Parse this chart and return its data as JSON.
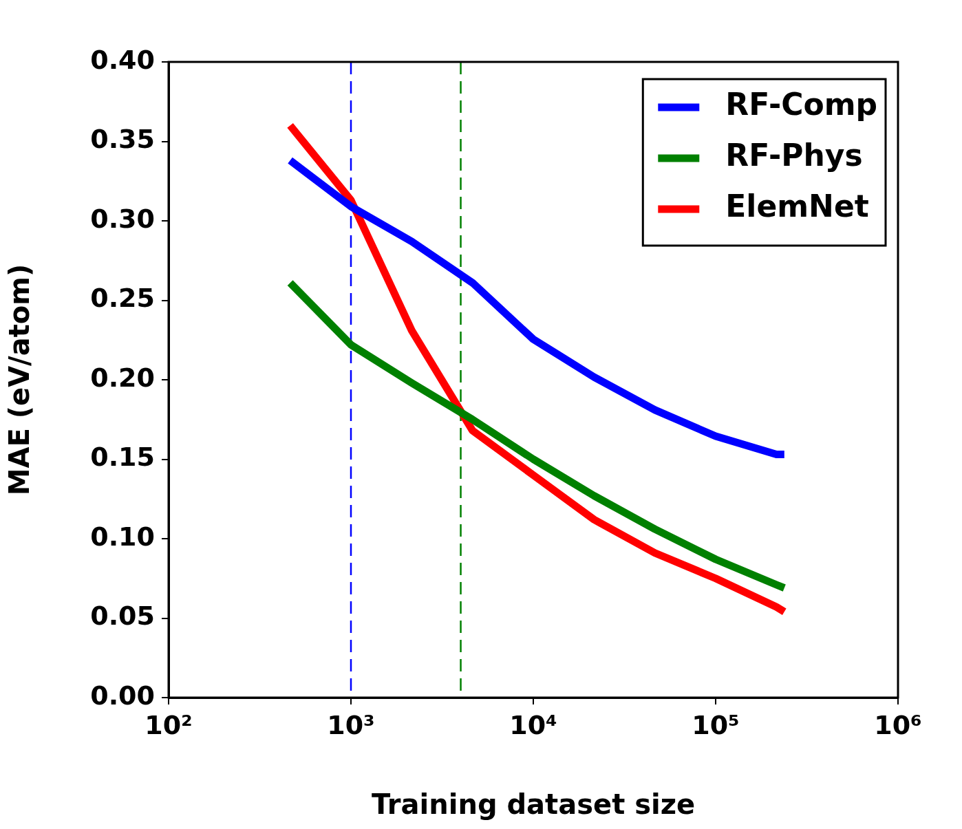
{
  "chart_data": {
    "type": "line",
    "xlabel": "Training dataset size",
    "ylabel": "MAE (eV/atom)",
    "log": "x",
    "x": [
      464,
      1000,
      2154,
      4642,
      10000,
      21544,
      46416,
      100000,
      215443,
      238000
    ],
    "series": [
      {
        "name": "RF-Comp",
        "color": "#0000ff",
        "values": [
          0.338,
          0.309,
          0.287,
          0.261,
          0.2255,
          0.2017,
          0.181,
          0.1645,
          0.153,
          0.153
        ]
      },
      {
        "name": "RF-Phys",
        "color": "#008000",
        "values": [
          0.261,
          0.222,
          0.198,
          0.175,
          0.15,
          0.127,
          0.106,
          0.087,
          0.071,
          0.069
        ]
      },
      {
        "name": "ElemNet",
        "color": "#ff0000",
        "values": [
          0.36,
          0.313,
          0.231,
          0.168,
          0.14,
          0.112,
          0.091,
          0.075,
          0.057,
          0.054
        ]
      }
    ],
    "xlim": [
      100,
      1000000
    ],
    "xticks": [
      {
        "value": 100,
        "label": "10²"
      },
      {
        "value": 1000,
        "label": "10³"
      },
      {
        "value": 10000,
        "label": "10⁴"
      },
      {
        "value": 100000,
        "label": "10⁵"
      },
      {
        "value": 1000000,
        "label": "10⁶"
      }
    ],
    "ylim": [
      0,
      0.4
    ],
    "yticks": [
      {
        "value": 0,
        "label": "0.00"
      },
      {
        "value": 0.05,
        "label": "0.05"
      },
      {
        "value": 0.1,
        "label": "0.10"
      },
      {
        "value": 0.15,
        "label": "0.15"
      },
      {
        "value": 0.2,
        "label": "0.20"
      },
      {
        "value": 0.25,
        "label": "0.25"
      },
      {
        "value": 0.3,
        "label": "0.30"
      },
      {
        "value": 0.35,
        "label": "0.35"
      },
      {
        "value": 0.4,
        "label": "0.40"
      }
    ],
    "ref_lines": [
      {
        "axis": "x",
        "value": 1000,
        "color": "#0000ff",
        "line_style": "dashed"
      },
      {
        "axis": "x",
        "value": 4000,
        "color": "#008000",
        "line_style": "dashed"
      }
    ],
    "grid": false,
    "legend": "top right",
    "marker": "none",
    "line_style": "solid"
  }
}
